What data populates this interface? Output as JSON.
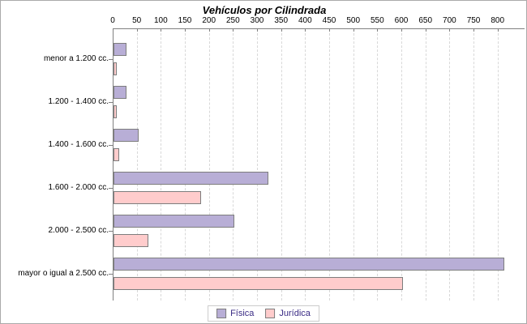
{
  "chart_data": {
    "type": "bar",
    "orientation": "horizontal",
    "title": "Vehículos por Cilindrada",
    "categories": [
      "menor a 1.200 cc.",
      "1.200 - 1.400 cc.",
      "1.400 - 1.600 cc.",
      "1.600 - 2.000 cc.",
      "2.000 - 2.500 cc.",
      "mayor o igual a 2.500 cc."
    ],
    "series": [
      {
        "name": "Física",
        "color": "#b8aed6",
        "values": [
          25,
          25,
          50,
          320,
          250,
          810
        ]
      },
      {
        "name": "Jurídica",
        "color": "#ffcccc",
        "values": [
          5,
          5,
          10,
          180,
          70,
          600
        ]
      }
    ],
    "value_axis": {
      "position": "top",
      "min": 0,
      "max": 855,
      "tick_interval": 50,
      "ticks": [
        0,
        50,
        100,
        150,
        200,
        250,
        300,
        350,
        400,
        450,
        500,
        550,
        600,
        650,
        700,
        750,
        800
      ]
    },
    "grid": "dashed-vertical",
    "legend_position": "bottom",
    "colors": {
      "axis": "#808080",
      "gridline": "#d8d8d8",
      "bar_border": "#7d7d7d",
      "legend_text": "#3b2c85",
      "title_text": "#000000"
    }
  }
}
